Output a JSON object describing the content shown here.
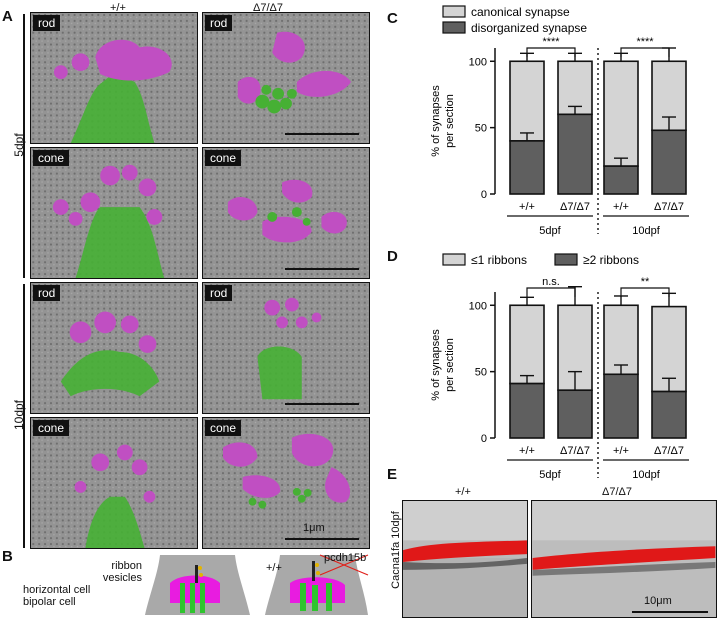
{
  "panels": {
    "A": "A",
    "B": "B",
    "C": "C",
    "D": "D",
    "E": "E"
  },
  "panelA": {
    "col_wt": "+/+",
    "col_mut": "Δ7/Δ7",
    "row_5dpf": "5dpf",
    "row_10dpf": "10dpf",
    "tags": [
      "rod",
      "rod",
      "cone",
      "cone",
      "rod",
      "rod",
      "cone",
      "cone"
    ],
    "scale": "1μm",
    "colors": {
      "ribbon": "#c050c0",
      "dendrite": "#3fae2f",
      "em_bg": "#8e8e8e"
    }
  },
  "panelB": {
    "ribbon": "ribbon",
    "vesicles": "vesicles",
    "horizontal_cell": "horizontal cell",
    "bipolar_cell": "bipolar cell",
    "wt": "+/+",
    "mut": "pcdh15b"
  },
  "panelC": {
    "legend": [
      "canonical synapse",
      "disorganized synapse"
    ],
    "ylabel": "% of synapses\nper section",
    "ytick": [
      "0",
      "50",
      "100"
    ],
    "xticks": [
      "+/+",
      "Δ7/Δ7",
      "+/+",
      "Δ7/Δ7"
    ],
    "groups": [
      "5dpf",
      "10dpf"
    ],
    "sig": [
      "****",
      "****"
    ]
  },
  "panelD": {
    "legend": [
      "≤1 ribbons",
      "≥2 ribbons"
    ],
    "ylabel": "% of synapses\nper section",
    "ytick": [
      "0",
      "50",
      "100"
    ],
    "xticks": [
      "+/+",
      "Δ7/Δ7",
      "+/+",
      "Δ7/Δ7"
    ],
    "groups": [
      "5dpf",
      "10dpf"
    ],
    "sig": [
      "n.s.",
      "**"
    ]
  },
  "panelE": {
    "wt": "+/+",
    "mut": "Δ7/Δ7",
    "ylabel": "Cacna1fa 10dpf",
    "scale": "10μm"
  },
  "chart_data": [
    {
      "type": "bar",
      "title": "",
      "categories": [
        "+/+ 5dpf",
        "Δ7/Δ7 5dpf",
        "+/+ 10dpf",
        "Δ7/Δ7 10dpf"
      ],
      "series": [
        {
          "name": "disorganized synapse",
          "values": [
            40,
            60,
            21,
            48
          ],
          "error": [
            6,
            6,
            6,
            10
          ]
        },
        {
          "name": "canonical synapse",
          "values": [
            60,
            40,
            79,
            52
          ],
          "error": [
            6,
            6,
            6,
            10
          ]
        }
      ],
      "ylabel": "% of synapses per section",
      "ylim": [
        0,
        110
      ],
      "stacked": true
    },
    {
      "type": "bar",
      "title": "",
      "categories": [
        "+/+ 5dpf",
        "Δ7/Δ7 5dpf",
        "+/+ 10dpf",
        "Δ7/Δ7 10dpf"
      ],
      "series": [
        {
          "name": "≥2 ribbons",
          "values": [
            41,
            36,
            48,
            35
          ],
          "error": [
            6,
            14,
            7,
            10
          ]
        },
        {
          "name": "≤1 ribbons",
          "values": [
            59,
            64,
            52,
            64
          ],
          "error": [
            6,
            14,
            7,
            10
          ]
        }
      ],
      "ylabel": "% of synapses per section",
      "ylim": [
        0,
        110
      ],
      "stacked": true
    }
  ]
}
